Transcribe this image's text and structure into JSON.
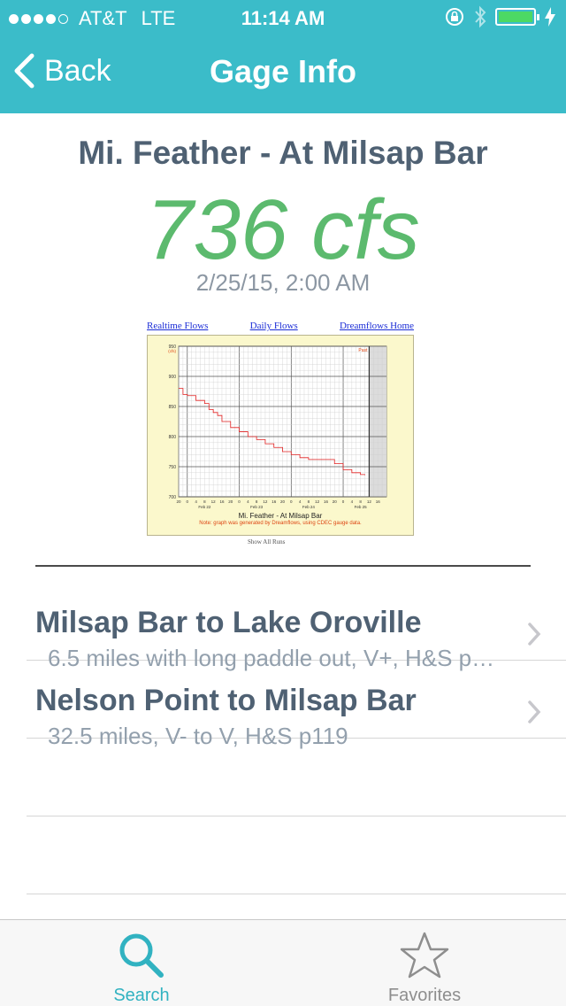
{
  "status_bar": {
    "carrier": "AT&T",
    "network": "LTE",
    "time": "11:14 AM"
  },
  "nav": {
    "back_label": "Back",
    "title": "Gage Info"
  },
  "gage": {
    "name": "Mi. Feather - At Milsap Bar",
    "flow": "736 cfs",
    "timestamp": "2/25/15, 2:00 AM"
  },
  "graph": {
    "links": [
      "Realtime Flows",
      "Daily Flows",
      "Dreamflows Home"
    ],
    "title": "Mi. Feather - At Milsap Bar",
    "note": "Note: graph was generated by Dreamflows, using CDEC gauge data.",
    "past_label": "Past",
    "unit_label": "(cfs)",
    "show_all": "Show All Runs",
    "line_color": "#e02020"
  },
  "chart_data": {
    "type": "line",
    "title": "Mi. Feather - At Milsap Bar",
    "ylabel": "(cfs)",
    "ylim": [
      700,
      950
    ],
    "y_ticks": [
      700,
      750,
      800,
      850,
      900,
      950
    ],
    "x_tick_labels": [
      "20",
      "0",
      "4",
      "8",
      "12",
      "16",
      "20",
      "0",
      "4",
      "8",
      "12",
      "16",
      "20",
      "0",
      "4",
      "8",
      "12",
      "16",
      "20",
      "0",
      "4",
      "8",
      "12",
      "16"
    ],
    "date_labels": [
      "Feb 22",
      "Feb 23",
      "Feb 24",
      "Feb 25"
    ],
    "series": [
      {
        "name": "Flow",
        "x": [
          0,
          2,
          4,
          8,
          12,
          14,
          16,
          18,
          20,
          24,
          28,
          32,
          36,
          40,
          44,
          48,
          52,
          56,
          60,
          64,
          68,
          72,
          76,
          80,
          84,
          86
        ],
        "y": [
          880,
          870,
          868,
          860,
          855,
          845,
          840,
          835,
          825,
          815,
          808,
          800,
          795,
          788,
          782,
          775,
          770,
          765,
          762,
          762,
          762,
          755,
          745,
          740,
          737,
          736
        ]
      }
    ]
  },
  "runs": [
    {
      "name": "Milsap Bar to Lake Oroville",
      "desc": "6.5 miles with long paddle out, V+, H&S p119"
    },
    {
      "name": "Nelson Point to Milsap Bar",
      "desc": "32.5 miles, V- to V, H&S p119"
    }
  ],
  "tabs": [
    {
      "label": "Search",
      "icon": "search-icon",
      "color": "#31b2c1"
    },
    {
      "label": "Favorites",
      "icon": "star-icon",
      "color": "#8e8e8e"
    }
  ],
  "colors": {
    "header": "#3bbcc9",
    "flow": "#5cba6e",
    "title_text": "#4f6173",
    "sub_text": "#93a0ad"
  }
}
